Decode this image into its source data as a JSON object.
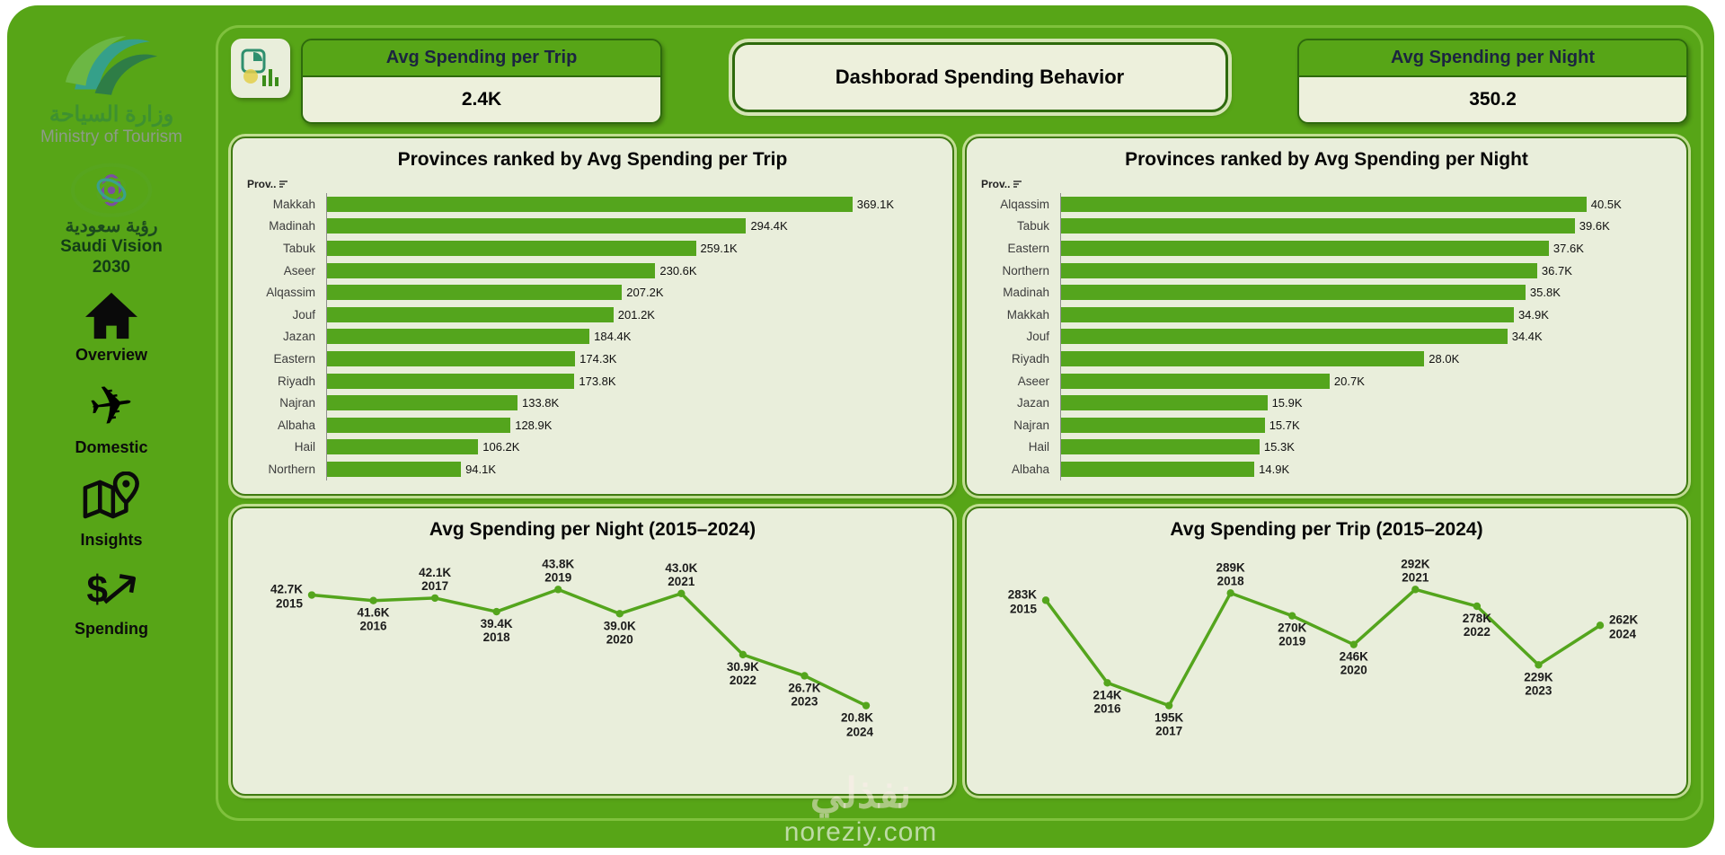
{
  "colors": {
    "brand_green": "#57a517",
    "panel_bg": "#e9eedb",
    "bar_color": "#54a51d",
    "kpi_title_text": "#1b2440"
  },
  "sidebar": {
    "ministry_logo": {
      "arabic": "وزارة السياحة",
      "english": "Ministry of Tourism"
    },
    "vision_logo": {
      "arabic": "رؤية سعودية",
      "line1": "Saudi Vision",
      "line2": "2030"
    },
    "nav": [
      {
        "label": "Overview",
        "icon": "home-icon"
      },
      {
        "label": "Domestic",
        "icon": "plane-icon"
      },
      {
        "label": "Insights",
        "icon": "map-pin-icon"
      },
      {
        "label": "Spending",
        "icon": "dollar-trend-icon"
      }
    ]
  },
  "header": {
    "title": "Dashborad Spending Behavior",
    "kpis": [
      {
        "label": "Avg Spending per Trip",
        "value": "2.4K"
      },
      {
        "label": "Avg Spending per Night",
        "value": "350.2"
      }
    ]
  },
  "watermark": {
    "line1": "نفذلي",
    "line2": "noreziy.com"
  },
  "chart_data": [
    {
      "type": "bar",
      "orientation": "horizontal",
      "title": "Provinces ranked by Avg Spending per Trip",
      "column_header": "Prov..",
      "categories": [
        "Makkah",
        "Madinah",
        "Tabuk",
        "Aseer",
        "Alqassim",
        "Jouf",
        "Jazan",
        "Eastern",
        "Riyadh",
        "Najran",
        "Albaha",
        "Hail",
        "Northern"
      ],
      "values": [
        369.1,
        294.4,
        259.1,
        230.6,
        207.2,
        201.2,
        184.4,
        174.3,
        173.8,
        133.8,
        128.9,
        106.2,
        94.1
      ],
      "value_labels": [
        "369.1K",
        "294.4K",
        "259.1K",
        "230.6K",
        "207.2K",
        "201.2K",
        "184.4K",
        "174.3K",
        "173.8K",
        "133.8K",
        "128.9K",
        "106.2K",
        "94.1K"
      ],
      "unit": "K (SAR)",
      "legend": "none",
      "grid": false
    },
    {
      "type": "bar",
      "orientation": "horizontal",
      "title": "Provinces ranked by Avg Spending per Night",
      "column_header": "Prov..",
      "categories": [
        "Alqassim",
        "Tabuk",
        "Eastern",
        "Northern",
        "Madinah",
        "Makkah",
        "Jouf",
        "Riyadh",
        "Aseer",
        "Jazan",
        "Najran",
        "Hail",
        "Albaha"
      ],
      "values": [
        40.5,
        39.6,
        37.6,
        36.7,
        35.8,
        34.9,
        34.4,
        28.0,
        20.7,
        15.9,
        15.7,
        15.3,
        14.9
      ],
      "value_labels": [
        "40.5K",
        "39.6K",
        "37.6K",
        "36.7K",
        "35.8K",
        "34.9K",
        "34.4K",
        "28.0K",
        "20.7K",
        "15.9K",
        "15.7K",
        "15.3K",
        "14.9K"
      ],
      "unit": "K (SAR)",
      "legend": "none",
      "grid": false
    },
    {
      "type": "line",
      "title": "Avg Spending per Night (2015–2024)",
      "x": [
        2015,
        2016,
        2017,
        2018,
        2019,
        2020,
        2021,
        2022,
        2023,
        2024
      ],
      "values": [
        42.7,
        41.6,
        42.1,
        39.4,
        43.8,
        39.0,
        43.0,
        30.9,
        26.7,
        20.8
      ],
      "value_labels": [
        "42.7K",
        "41.6K",
        "42.1K",
        "39.4K",
        "43.8K",
        "39.0K",
        "43.0K",
        "30.9K",
        "26.7K",
        "20.8K"
      ],
      "unit": "K (SAR)",
      "legend": "none",
      "grid": false
    },
    {
      "type": "line",
      "title": "Avg Spending per Trip (2015–2024)",
      "x": [
        2015,
        2016,
        2017,
        2018,
        2019,
        2020,
        2021,
        2022,
        2023,
        2024
      ],
      "values": [
        283,
        214,
        195,
        289,
        270,
        246,
        292,
        278,
        229,
        262
      ],
      "value_labels": [
        "283K",
        "214K",
        "195K",
        "289K",
        "270K",
        "246K",
        "292K",
        "278K",
        "229K",
        "262K"
      ],
      "unit": "K (SAR)",
      "legend": "none",
      "grid": false
    }
  ]
}
